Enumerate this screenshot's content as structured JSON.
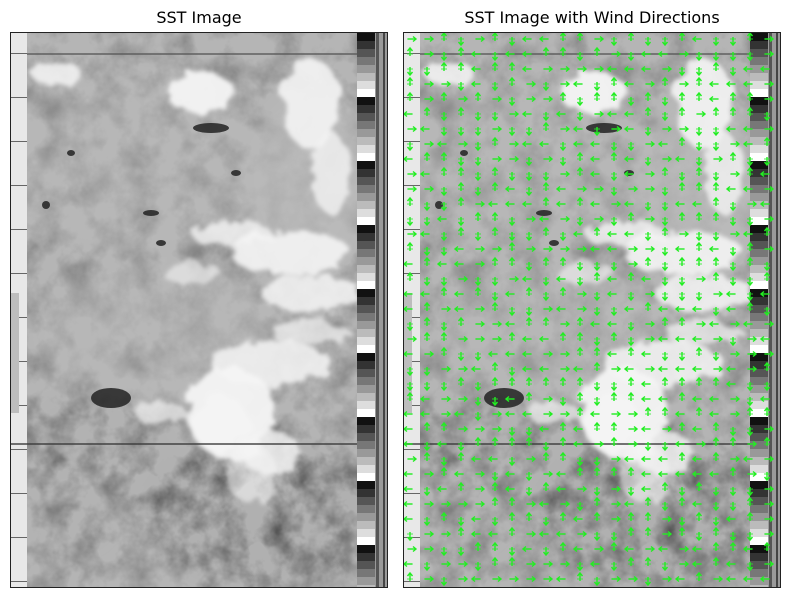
{
  "panels": [
    {
      "title": "SST Image"
    },
    {
      "title": "SST Image with Wind Directions"
    }
  ],
  "colors": {
    "arrow": "#22ee22",
    "background": "#ffffff"
  }
}
